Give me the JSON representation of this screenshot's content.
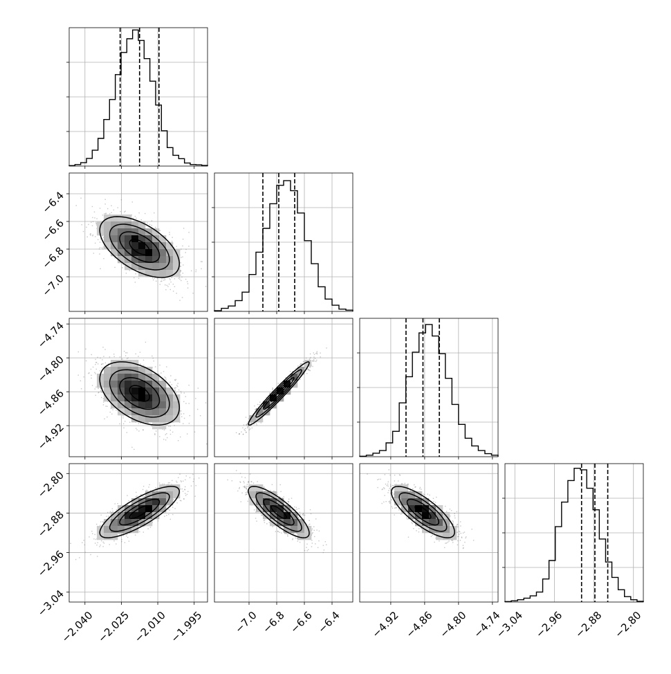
{
  "chart_data": {
    "type": "corner",
    "title": "",
    "variables": [
      {
        "range": [
          -2.0465,
          -1.9895
        ],
        "ticks": [
          -2.04,
          -2.025,
          -2.01,
          -1.995
        ],
        "tick_labels": [
          "−2.040",
          "−2.025",
          "−2.010",
          "−1.995"
        ],
        "quantiles": [
          -2.0255,
          -2.0175,
          -2.0095
        ],
        "mean": -2.0175,
        "sd": 0.0082,
        "hist_counts": [
          0.3,
          1.0,
          2.2,
          5.0,
          10.3,
          18.0,
          30.3,
          43.3,
          59.5,
          73.9,
          82.8,
          88.5,
          81.7,
          69.9,
          55.2,
          39.7,
          23.0,
          12.0,
          7.0,
          4.8,
          2.0,
          1.0,
          0.8,
          0.4
        ],
        "hist_max": 90
      },
      {
        "range": [
          -7.25,
          -6.25
        ],
        "ticks": [
          -7.0,
          -6.8,
          -6.6,
          -6.4
        ],
        "tick_labels": [
          "−7.0",
          "−6.8",
          "−6.6",
          "−6.4"
        ],
        "quantiles": [
          -6.9,
          -6.785,
          -6.67
        ],
        "mean": -6.785,
        "sd": 0.11,
        "hist_counts": [
          0.5,
          2.0,
          3.5,
          7.0,
          12.5,
          24.0,
          38.5,
          54.0,
          70.0,
          82.0,
          85.0,
          78.5,
          64.0,
          46.0,
          31.0,
          16.0,
          8.0,
          4.0,
          1.5,
          0.8
        ],
        "hist_max": 90
      },
      {
        "range": [
          -4.975,
          -4.73
        ],
        "ticks": [
          -4.92,
          -4.86,
          -4.8,
          -4.74
        ],
        "tick_labels": [
          "−4.92",
          "−4.86",
          "−4.80",
          "−4.74"
        ],
        "quantiles": [
          -4.893,
          -4.863,
          -4.834
        ],
        "mean": -4.863,
        "sd": 0.028,
        "hist_counts": [
          0.3,
          1.0,
          2.3,
          4.0,
          9.0,
          16.5,
          35.0,
          52.0,
          68.0,
          80.5,
          86.0,
          78.5,
          67.0,
          51.0,
          34.0,
          21.0,
          12.0,
          7.0,
          4.0,
          2.0,
          1.0
        ],
        "hist_max": 90
      },
      {
        "range": [
          -3.06,
          -2.78
        ],
        "ticks": [
          -3.04,
          -2.96,
          -2.88,
          -2.8
        ],
        "tick_labels": [
          "−3.04",
          "−2.96",
          "−2.88",
          "−2.80"
        ],
        "quantiles": [
          -2.905,
          -2.878,
          -2.852
        ],
        "mean": -2.878,
        "sd": 0.026,
        "hist_counts": [
          0.3,
          0.8,
          1.5,
          2.5,
          4.0,
          6.5,
          15.0,
          27.0,
          49.0,
          65.0,
          79.0,
          87.0,
          86.0,
          74.0,
          60.0,
          41.0,
          26.0,
          16.0,
          8.0,
          3.5,
          1.5,
          0.5
        ],
        "hist_max": 90
      }
    ],
    "correlations": [
      [
        1.0,
        -0.55,
        -0.45,
        0.8
      ],
      [
        -0.55,
        1.0,
        0.97,
        -0.82
      ],
      [
        -0.45,
        0.97,
        1.0,
        -0.78
      ],
      [
        0.8,
        -0.82,
        -0.78,
        1.0
      ]
    ],
    "contour_levels_sigma": [
      0.5,
      1.0,
      1.5,
      2.0
    ],
    "grid": true,
    "hist_style": "step",
    "quantile_line_style": "dashed",
    "scatter_color": "#7f7f7f",
    "line_color": "#000000"
  }
}
